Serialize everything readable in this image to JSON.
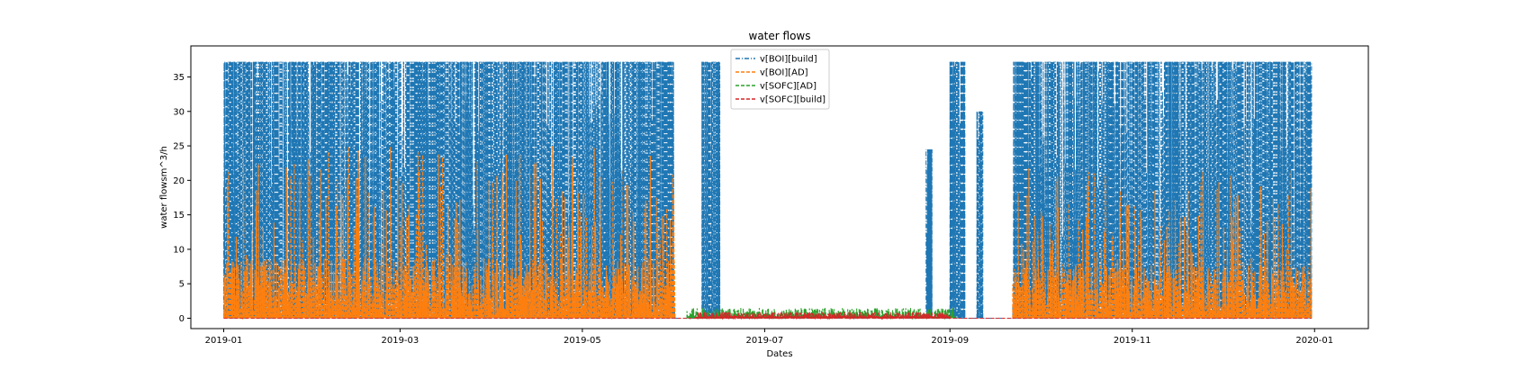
{
  "chart_data": {
    "type": "line",
    "title": "water flows",
    "xlabel": "Dates",
    "ylabel": "water flowsm^3/h",
    "xlim": [
      "2018-12-21",
      "2020-01-19"
    ],
    "ylim": [
      -1.5,
      39.5
    ],
    "x_ticks": [
      "2019-01",
      "2019-03",
      "2019-05",
      "2019-07",
      "2019-09",
      "2019-11",
      "2020-01"
    ],
    "y_ticks": [
      0,
      5,
      10,
      15,
      20,
      25,
      30,
      35
    ],
    "grid": false,
    "legend_position": "upper center",
    "series": [
      {
        "name": "v[BOI][build]",
        "color": "#1f77b4",
        "line_style": "dashdot",
        "peak_value": 37.2,
        "active_periods": [
          [
            "2019-01-01",
            "2019-06-01",
            37.2
          ],
          [
            "2019-06-10",
            "2019-06-16",
            37.2
          ],
          [
            "2019-08-24",
            "2019-08-26",
            24.5
          ],
          [
            "2019-09-01",
            "2019-09-06",
            37.2
          ],
          [
            "2019-09-10",
            "2019-09-12",
            30.0
          ],
          [
            "2019-09-22",
            "2019-12-31",
            37.2
          ]
        ]
      },
      {
        "name": "v[BOI][AD]",
        "color": "#ff7f0e",
        "line_style": "dashed",
        "peak_value": 25.0,
        "active_periods": [
          [
            "2019-01-01",
            "2019-06-01",
            25.0
          ],
          [
            "2019-09-22",
            "2019-12-31",
            22.0
          ]
        ]
      },
      {
        "name": "v[SOFC][AD]",
        "color": "#2ca02c",
        "line_style": "dashed",
        "peak_value": 1.5,
        "active_periods": [
          [
            "2019-06-05",
            "2019-09-03",
            1.5
          ]
        ]
      },
      {
        "name": "v[SOFC][build]",
        "color": "#d62728",
        "line_style": "dashed",
        "peak_value": 0.9,
        "active_periods": [
          [
            "2019-06-08",
            "2019-09-01",
            0.9
          ]
        ]
      }
    ]
  }
}
